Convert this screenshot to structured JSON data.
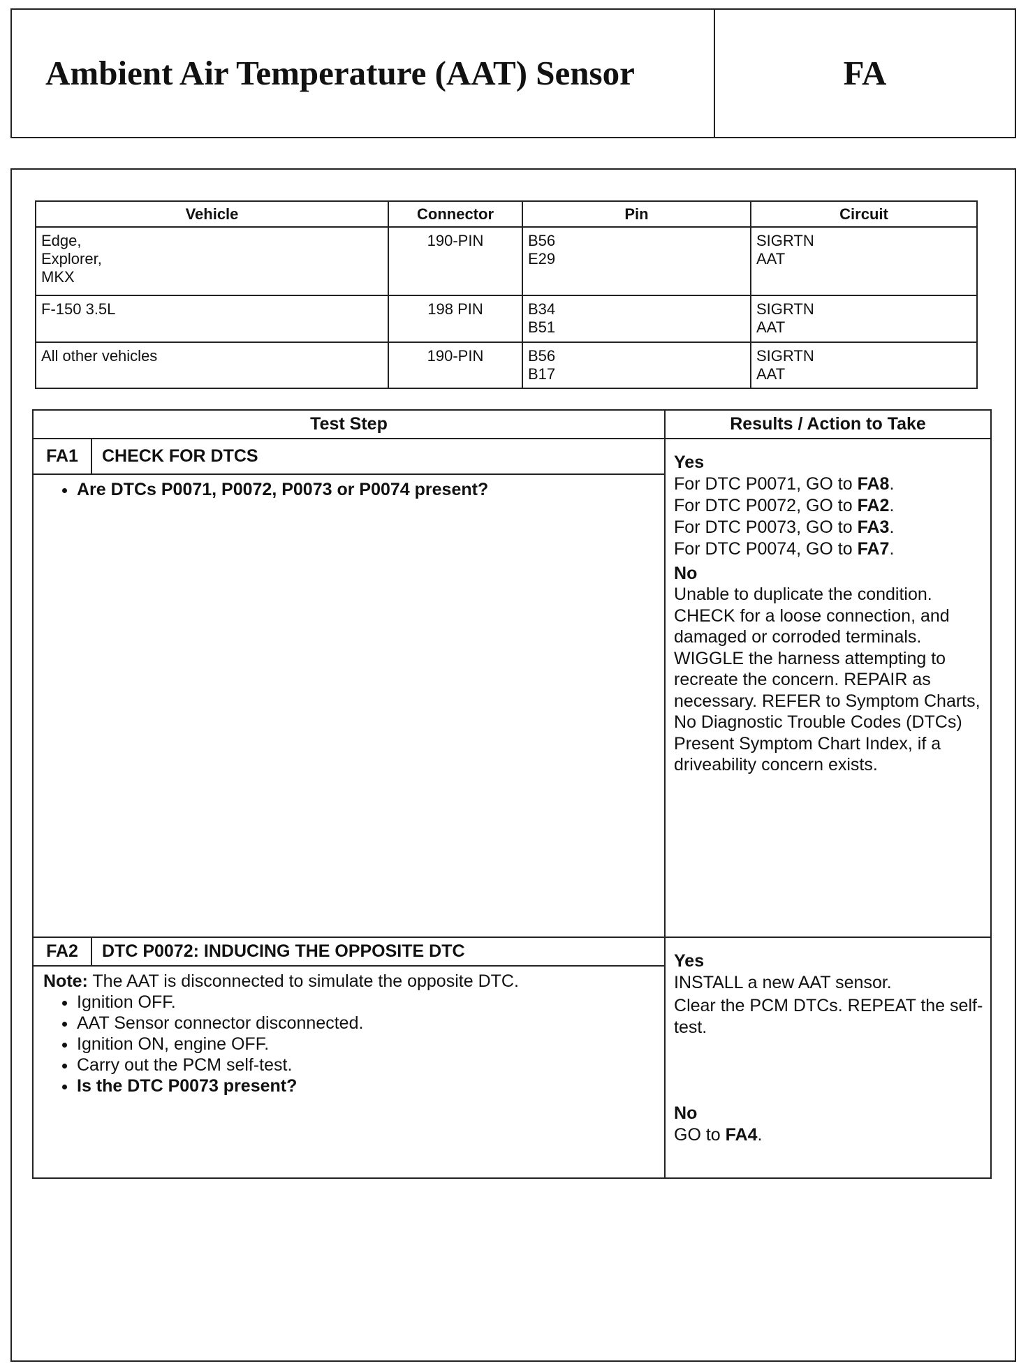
{
  "header": {
    "title": "Ambient Air Temperature (AAT) Sensor",
    "code": "FA"
  },
  "pin_table": {
    "columns": [
      "Vehicle",
      "Connector",
      "Pin",
      "Circuit"
    ],
    "rows": [
      [
        [
          "Edge,",
          "Explorer,",
          "MKX"
        ],
        "190-PIN",
        [
          "B56",
          "E29"
        ],
        [
          "SIGRTN",
          "AAT"
        ]
      ],
      [
        [
          "F-150 3.5L"
        ],
        "198 PIN",
        [
          "B34",
          "B51"
        ],
        [
          "SIGRTN",
          "AAT"
        ]
      ],
      [
        [
          "All other vehicles"
        ],
        "190-PIN",
        [
          "B56",
          "B17"
        ],
        [
          "SIGRTN",
          "AAT"
        ]
      ]
    ]
  },
  "test_table": {
    "columns": [
      "Test Step",
      "Results / Action to Take"
    ],
    "steps": [
      {
        "id": "FA1",
        "title": "CHECK FOR DTCS",
        "bullets": [
          "Are DTCs P0071, P0072, P0073  or P0074 present?"
        ],
        "yes_label": "Yes",
        "yes": [
          [
            "For DTC P0071, GO to ",
            "FA8",
            "."
          ],
          [
            "For DTC P0072, GO to ",
            "FA2",
            "."
          ],
          [
            "For DTC P0073, GO to ",
            "FA3",
            "."
          ],
          [
            "For DTC P0074, GO to ",
            "FA7",
            "."
          ]
        ],
        "no_label": "No",
        "no": "Unable to duplicate the condition. CHECK for a loose connection, and damaged or corroded terminals. WIGGLE the harness attempting to recreate the concern. REPAIR as necessary. REFER to Symptom Charts, No Diagnostic Trouble Codes (DTCs) Present Symptom Chart Index, if a driveability concern exists."
      },
      {
        "id": "FA2",
        "title": "DTC P0072: INDUCING THE OPPOSITE DTC",
        "note_label": "Note:",
        "note": "The AAT is disconnected to simulate the opposite DTC.",
        "bullets": [
          "Ignition OFF.",
          "AAT Sensor connector disconnected.",
          "Ignition ON, engine OFF.",
          "Carry out the PCM self-test.",
          "Is the DTC P0073 present?"
        ],
        "yes_label": "Yes",
        "yes": [
          "INSTALL a new AAT sensor.",
          "Clear the PCM DTCs. REPEAT the self-test."
        ],
        "no_label": "No",
        "no": [
          "GO to ",
          "FA4",
          "."
        ]
      }
    ]
  }
}
